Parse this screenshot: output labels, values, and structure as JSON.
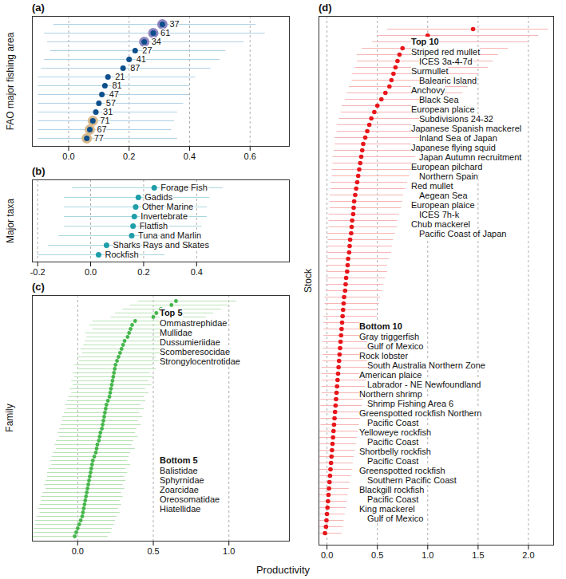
{
  "chart_data": [
    {
      "type": "scatter",
      "title": "(a)",
      "y_label": "FAO major fishing area",
      "categories": [
        "37",
        "61",
        "34",
        "27",
        "41",
        "87",
        "21",
        "81",
        "47",
        "57",
        "31",
        "71",
        "67",
        "77"
      ],
      "values": [
        0.31,
        0.28,
        0.25,
        0.22,
        0.2,
        0.18,
        0.13,
        0.12,
        0.11,
        0.1,
        0.09,
        0.08,
        0.07,
        0.06
      ],
      "lower": [
        -0.05,
        -0.08,
        -0.07,
        -0.06,
        -0.08,
        -0.09,
        -0.1,
        -0.1,
        -0.1,
        -0.1,
        -0.1,
        -0.1,
        -0.1,
        -0.1
      ],
      "upper": [
        0.62,
        0.65,
        0.58,
        0.52,
        0.5,
        0.47,
        0.42,
        0.4,
        0.4,
        0.38,
        0.36,
        0.35,
        0.34,
        0.36
      ],
      "color": "#0d4f8b",
      "colors": [
        "#8e86c2",
        "#8e86c2",
        "#8e86c2",
        "#0d4f8b",
        "#0d4f8b",
        "#0d4f8b",
        "#0d4f8b",
        "#0d4f8b",
        "#0d4f8b",
        "#0d4f8b",
        "#0d4f8b",
        "#d8b98c",
        "#d8b98c",
        "#d8b98c"
      ],
      "xlim": [
        -0.12,
        0.73
      ],
      "xticks": [
        {
          "value": 0,
          "label": "0.0"
        },
        0.2,
        0.4,
        0.6
      ],
      "grid": true,
      "tick_labels": "x"
    },
    {
      "type": "scatter",
      "title": "(b)",
      "y_label": "Major taxa",
      "categories": [
        "Forage Fish",
        "Gadids",
        "Other Marine",
        "Invertebrate",
        "Flatfish",
        "Tuna and Marlin",
        "Sharks Rays and Skates",
        "Rockfish"
      ],
      "values": [
        0.24,
        0.18,
        0.17,
        0.165,
        0.16,
        0.155,
        0.06,
        0.03
      ],
      "lower": [
        -0.07,
        -0.1,
        -0.1,
        -0.1,
        -0.1,
        -0.12,
        -0.16,
        -0.2
      ],
      "upper": [
        0.5,
        0.45,
        0.44,
        0.44,
        0.42,
        0.42,
        0.3,
        0.28
      ],
      "color": "#1f9eaa",
      "xlim": [
        -0.22,
        0.75
      ],
      "xticks": [
        -0.2,
        {
          "value": 0,
          "label": "0.0"
        },
        0.2,
        0.4
      ],
      "grid": true,
      "tick_labels": "x"
    },
    {
      "type": "scatter",
      "title": "(c)",
      "y_label": "Family",
      "values": [
        0.65,
        0.62,
        0.55,
        0.52,
        0.5,
        0.38,
        0.36,
        0.35,
        0.34,
        0.33,
        0.31,
        0.3,
        0.29,
        0.28,
        0.27,
        0.26,
        0.25,
        0.245,
        0.24,
        0.235,
        0.23,
        0.225,
        0.22,
        0.215,
        0.21,
        0.2,
        0.19,
        0.185,
        0.18,
        0.175,
        0.17,
        0.165,
        0.16,
        0.15,
        0.145,
        0.14,
        0.13,
        0.125,
        0.12,
        0.11,
        0.1,
        0.095,
        0.09,
        0.085,
        0.08,
        0.075,
        0.07,
        0.065,
        0.06,
        0.055,
        0.05,
        0.045,
        0.04,
        0.035,
        0.03,
        0.02,
        0.01,
        0.0,
        -0.01,
        -0.02
      ],
      "lower": [
        0.4,
        0.35,
        0.3,
        0.25,
        0.22,
        0.1,
        0.08,
        0.1,
        0.05,
        0.06,
        0.05,
        0.04,
        0.02,
        0.03,
        0.0,
        0.01,
        -0.02,
        0.0,
        -0.03,
        -0.02,
        -0.04,
        -0.03,
        -0.05,
        -0.04,
        -0.06,
        -0.07,
        -0.08,
        -0.07,
        -0.09,
        -0.1,
        -0.1,
        -0.11,
        -0.12,
        -0.13,
        -0.12,
        -0.14,
        -0.15,
        -0.14,
        -0.16,
        -0.17,
        -0.18,
        -0.17,
        -0.19,
        -0.2,
        -0.2,
        -0.21,
        -0.22,
        -0.21,
        -0.23,
        -0.24,
        -0.24,
        -0.25,
        -0.26,
        -0.25,
        -0.27,
        -0.28,
        -0.28,
        -0.29,
        -0.29,
        -0.3
      ],
      "upper": [
        1.05,
        1.0,
        0.95,
        0.9,
        0.85,
        0.7,
        0.65,
        0.66,
        0.62,
        0.6,
        0.6,
        0.58,
        0.55,
        0.57,
        0.52,
        0.54,
        0.5,
        0.52,
        0.48,
        0.5,
        0.47,
        0.49,
        0.45,
        0.47,
        0.44,
        0.45,
        0.42,
        0.44,
        0.41,
        0.43,
        0.4,
        0.42,
        0.39,
        0.38,
        0.4,
        0.37,
        0.36,
        0.38,
        0.35,
        0.34,
        0.33,
        0.35,
        0.32,
        0.33,
        0.31,
        0.32,
        0.3,
        0.31,
        0.29,
        0.3,
        0.28,
        0.29,
        0.27,
        0.28,
        0.26,
        0.25,
        0.24,
        0.23,
        0.22,
        0.2
      ],
      "color": "#43b649",
      "xlim": [
        -0.3,
        1.4
      ],
      "xticks": [
        {
          "value": 0,
          "label": "0.0"
        },
        0.5,
        {
          "value": 1,
          "label": "1.0"
        }
      ],
      "grid": true,
      "tick_labels": "x",
      "annotations": [
        {
          "title": "Top 5",
          "items": [
            "Ommastrephidae",
            "Mullidae",
            "Dussumieriidae",
            "Scomberesocidae",
            "Strongylocentrotidae"
          ]
        },
        {
          "title": "Bottom 5",
          "items": [
            "Balistidae",
            "Sphyrnidae",
            "Zoarcidae",
            "Oreosomatidae",
            "Hiatellidae"
          ]
        }
      ]
    },
    {
      "type": "scatter",
      "title": "(d)",
      "y_label": "Stock",
      "x_label": "Productivity",
      "values": [
        1.45,
        1.0,
        0.97,
        0.75,
        0.72,
        0.7,
        0.68,
        0.66,
        0.64,
        0.62,
        0.58,
        0.54,
        0.5,
        0.47,
        0.44,
        0.42,
        0.4,
        0.38,
        0.36,
        0.35,
        0.34,
        0.33,
        0.32,
        0.31,
        0.3,
        0.29,
        0.28,
        0.27,
        0.265,
        0.26,
        0.25,
        0.245,
        0.24,
        0.23,
        0.225,
        0.22,
        0.21,
        0.205,
        0.2,
        0.19,
        0.185,
        0.18,
        0.17,
        0.165,
        0.16,
        0.155,
        0.15,
        0.145,
        0.14,
        0.135,
        0.13,
        0.125,
        0.12,
        0.115,
        0.11,
        0.105,
        0.1,
        0.095,
        0.09,
        0.085,
        0.08,
        0.075,
        0.07,
        0.065,
        0.06,
        0.055,
        0.05,
        0.045,
        0.04,
        0.035,
        0.03,
        0.025,
        0.02,
        0.015,
        0.01,
        0.005,
        0.0,
        -0.005,
        -0.01,
        -0.02
      ],
      "lower": [
        0.6,
        0.5,
        0.45,
        0.35,
        0.3,
        0.3,
        0.28,
        0.25,
        0.25,
        0.22,
        0.2,
        0.18,
        0.15,
        0.14,
        0.12,
        0.1,
        0.1,
        0.08,
        0.08,
        0.07,
        0.06,
        0.06,
        0.05,
        0.05,
        0.04,
        0.04,
        0.03,
        0.03,
        0.03,
        0.02,
        0.02,
        0.02,
        0.01,
        0.01,
        0.01,
        0.0,
        0.0,
        0.0,
        0.0,
        -0.01,
        -0.01,
        -0.01,
        -0.02,
        -0.02,
        -0.02,
        -0.03,
        -0.03,
        -0.03,
        -0.03,
        -0.04,
        -0.04,
        -0.04,
        -0.04,
        -0.05,
        -0.05,
        -0.05,
        -0.05,
        -0.05,
        -0.06,
        -0.06,
        -0.06,
        -0.06,
        -0.06,
        -0.07,
        -0.07,
        -0.07,
        -0.07,
        -0.07,
        -0.07,
        -0.07,
        -0.07,
        -0.07,
        -0.07,
        -0.07,
        -0.07,
        -0.07,
        -0.07,
        -0.07,
        -0.07,
        -0.07
      ],
      "upper": [
        2.2,
        2.1,
        2.0,
        1.8,
        1.7,
        1.65,
        1.6,
        1.5,
        1.45,
        1.4,
        1.35,
        1.3,
        1.2,
        1.15,
        1.1,
        1.05,
        1.0,
        0.98,
        0.95,
        0.9,
        0.88,
        0.86,
        0.85,
        0.82,
        0.8,
        0.78,
        0.76,
        0.75,
        0.74,
        0.72,
        0.7,
        0.7,
        0.68,
        0.66,
        0.65,
        0.64,
        0.62,
        0.6,
        0.6,
        0.58,
        0.56,
        0.55,
        0.53,
        0.52,
        0.5,
        0.5,
        0.48,
        0.47,
        0.46,
        0.45,
        0.44,
        0.43,
        0.42,
        0.41,
        0.4,
        0.39,
        0.38,
        0.37,
        0.36,
        0.35,
        0.34,
        0.33,
        0.32,
        0.31,
        0.3,
        0.29,
        0.28,
        0.27,
        0.26,
        0.25,
        0.24,
        0.23,
        0.22,
        0.21,
        0.2,
        0.19,
        0.18,
        0.17,
        0.16,
        0.15
      ],
      "color": "#e8161b",
      "xlim": [
        -0.08,
        2.25
      ],
      "xticks": [
        {
          "value": 0,
          "label": "0.0"
        },
        0.5,
        {
          "value": 1,
          "label": "1.0"
        },
        1.5,
        {
          "value": 2,
          "label": "2.0"
        }
      ],
      "grid": true,
      "tick_labels": "x",
      "annotations": [
        {
          "title": "Top 10",
          "items": [
            {
              "name": "Striped red mullet",
              "stock": "ICES 3a-4-7d"
            },
            {
              "name": "Surmullet",
              "stock": "Balearic Island"
            },
            {
              "name": "Anchovy",
              "stock": "Black Sea"
            },
            {
              "name": "European plaice",
              "stock": "Subdivisions 24-32"
            },
            {
              "name": "Japanese Spanish mackerel",
              "stock": "Inland Sea of Japan"
            },
            {
              "name": "Japanese flying squid",
              "stock": "Japan Autumn recruitment"
            },
            {
              "name": "European pilchard",
              "stock": "Northern Spain"
            },
            {
              "name": "Red mullet",
              "stock": "Aegean Sea"
            },
            {
              "name": "European plaice",
              "stock": "ICES 7h-k"
            },
            {
              "name": "Chub mackerel",
              "stock": "Pacific Coast of Japan"
            }
          ]
        },
        {
          "title": "Bottom 10",
          "items": [
            {
              "name": "Gray triggerfish",
              "stock": "Gulf of Mexico"
            },
            {
              "name": "Rock lobster",
              "stock": "South Australia Northern Zone"
            },
            {
              "name": "American plaice",
              "stock": "Labrador - NE Newfoundland"
            },
            {
              "name": "Northern shrimp",
              "stock": "Shrimp Fishing Area 6"
            },
            {
              "name": "Greenspotted rockfish Northern",
              "stock": "Pacific Coast"
            },
            {
              "name": "Yelloweye rockfish",
              "stock": "Pacific Coast"
            },
            {
              "name": "Shortbelly rockfish",
              "stock": "Pacific Coast"
            },
            {
              "name": "Greenspotted rockfish",
              "stock": "Southern Pacific Coast"
            },
            {
              "name": "Blackgill rockfish",
              "stock": "Pacific Coast"
            },
            {
              "name": "King mackerel",
              "stock": "Gulf of Mexico"
            }
          ]
        }
      ]
    }
  ]
}
